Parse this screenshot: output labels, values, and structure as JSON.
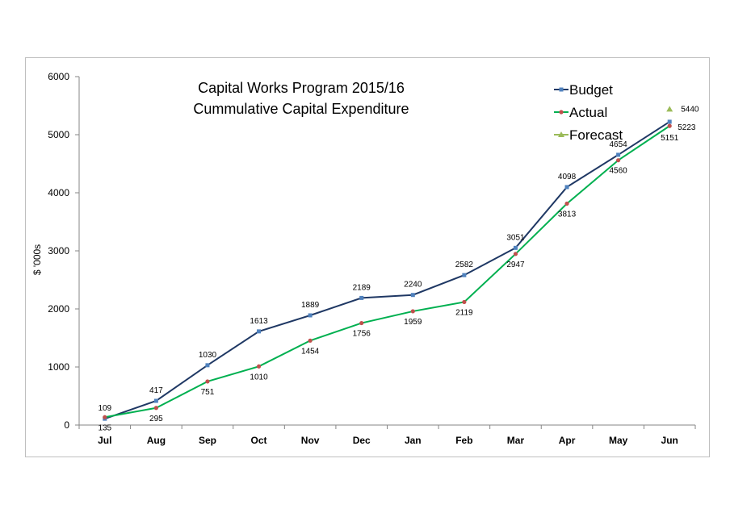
{
  "chart_data": {
    "type": "line",
    "title_lines": [
      "Capital Works Program 2015/16",
      "Cummulative Capital Expenditure"
    ],
    "ylabel": "$ '000s",
    "xlabel": "",
    "ylim": [
      0,
      6000
    ],
    "yticks": [
      0,
      1000,
      2000,
      3000,
      4000,
      5000,
      6000
    ],
    "categories": [
      "Jul",
      "Aug",
      "Sep",
      "Oct",
      "Nov",
      "Dec",
      "Jan",
      "Feb",
      "Mar",
      "Apr",
      "May",
      "Jun"
    ],
    "grid": false,
    "legend_position": "top-right",
    "series": [
      {
        "name": "Budget",
        "color": "#1f3864",
        "marker_color": "#4f81bd",
        "marker": "square",
        "values": [
          109,
          417,
          1030,
          1613,
          1889,
          2189,
          2240,
          2582,
          3051,
          4098,
          4654,
          5223
        ],
        "labels": [
          "109",
          "417",
          "1030",
          "1613",
          "1889",
          "2189",
          "2240",
          "2582",
          "3051",
          "4098",
          "4654",
          "5223"
        ]
      },
      {
        "name": "Actual",
        "color": "#00b050",
        "marker_color": "#c0504d",
        "marker": "circle",
        "values": [
          135,
          295,
          751,
          1010,
          1454,
          1756,
          1959,
          2119,
          2947,
          3813,
          4560,
          5151
        ],
        "labels": [
          "135",
          "295",
          "751",
          "1010",
          "1454",
          "1756",
          "1959",
          "2119",
          "2947",
          "3813",
          "4560",
          "5151"
        ]
      },
      {
        "name": "Forecast",
        "color": "#9bbb59",
        "marker_color": "#9bbb59",
        "marker": "triangle",
        "values": [
          null,
          null,
          null,
          null,
          null,
          null,
          null,
          null,
          null,
          null,
          null,
          5440
        ],
        "labels": [
          "",
          "",
          "",
          "",
          "",
          "",
          "",
          "",
          "",
          "",
          "",
          "5440"
        ]
      }
    ]
  }
}
